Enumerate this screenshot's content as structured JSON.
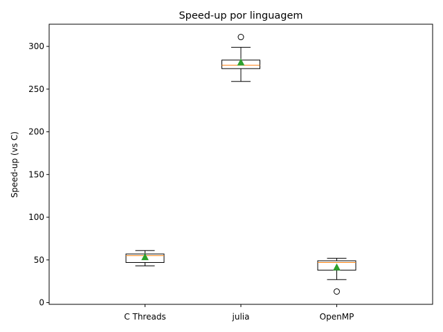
{
  "chart_data": {
    "type": "box",
    "title": "Speed-up por linguagem",
    "xlabel": "",
    "ylabel": "Speed-up (vs C)",
    "ylim": [
      -2,
      326
    ],
    "yticks": [
      0,
      50,
      100,
      150,
      200,
      250,
      300
    ],
    "grid": false,
    "legend": "none",
    "categories": [
      "C Threads",
      "julia",
      "OpenMP"
    ],
    "boxes": [
      {
        "label": "C Threads",
        "whisker_low": 43,
        "q1": 47,
        "median": 55,
        "q3": 57,
        "whisker_high": 61,
        "mean": 53,
        "outliers": []
      },
      {
        "label": "julia",
        "whisker_low": 259,
        "q1": 274,
        "median": 278,
        "q3": 284,
        "whisker_high": 299,
        "mean": 281,
        "outliers": [
          311
        ]
      },
      {
        "label": "OpenMP",
        "whisker_low": 27,
        "q1": 38,
        "median": 47,
        "q3": 49,
        "whisker_high": 52,
        "mean": 41,
        "outliers": [
          13
        ]
      }
    ],
    "colors": {
      "median": "#ff7f0e",
      "mean": "#2ca02c",
      "box": "#000000"
    }
  }
}
